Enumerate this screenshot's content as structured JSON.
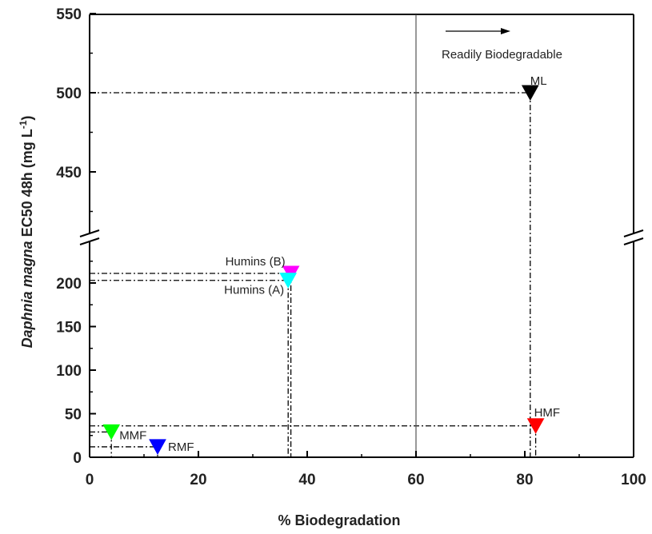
{
  "chart_data": {
    "type": "scatter",
    "title": "",
    "xlabel": "% Biodegradation",
    "ylabel": {
      "italic": "Daphnia magna",
      "normal": " EC50 48h (mg L",
      "sup": "-1",
      "close": ")"
    },
    "xlim": [
      0,
      100
    ],
    "x_ticks": [
      0,
      20,
      40,
      60,
      80,
      100
    ],
    "y_broken_axis": true,
    "y_lower_range": [
      0,
      250
    ],
    "y_lower_ticks": [
      0,
      50,
      100,
      150,
      200
    ],
    "y_upper_range": [
      400,
      550
    ],
    "y_upper_ticks": [
      450,
      500,
      550
    ],
    "grid": false,
    "legend": "none",
    "points": [
      {
        "label": "ML",
        "x": 81,
        "y": 500,
        "color": "#000000"
      },
      {
        "label": "Humins (B)",
        "x": 37,
        "y": 211,
        "color": "#ff00ff"
      },
      {
        "label": "Humins (A)",
        "x": 36.5,
        "y": 203,
        "color": "#00ffff"
      },
      {
        "label": "HMF",
        "x": 82,
        "y": 36,
        "color": "#ff0000"
      },
      {
        "label": "MMF",
        "x": 4,
        "y": 29,
        "color": "#00ff00"
      },
      {
        "label": "RMF",
        "x": 12.5,
        "y": 12,
        "color": "#0000ff"
      }
    ],
    "vline_x": 60,
    "annotation": {
      "text": "Readily Biodegradable",
      "arrow": "right"
    }
  }
}
